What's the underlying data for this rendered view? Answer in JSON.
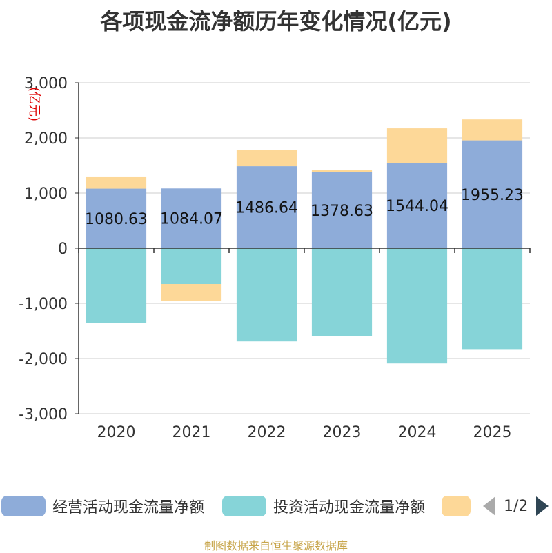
{
  "title": "各项现金流净额历年变化情况(亿元)",
  "unit_label": "(亿元)",
  "source": "制图数据来自恒生聚源数据库",
  "pager": {
    "text": "1/2"
  },
  "legend": [
    {
      "label": "经营活动现金流量净额",
      "color": "#8eacd9"
    },
    {
      "label": "投资活动现金流量净额",
      "color": "#86d4d8"
    },
    {
      "label": "",
      "color": "#fdd898"
    }
  ],
  "chart_data": {
    "type": "bar",
    "stacked": true,
    "title": "各项现金流净额历年变化情况(亿元)",
    "ylabel": "(亿元)",
    "ylim": [
      -3000,
      3000
    ],
    "yticks": [
      3000,
      2000,
      1000,
      0,
      -1000,
      -2000,
      -3000
    ],
    "ytick_labels": [
      "3,000",
      "2,000",
      "1,000",
      "0",
      "-1,000",
      "-2,000",
      "-3,000"
    ],
    "categories": [
      "2020",
      "2021",
      "2022",
      "2023",
      "2024",
      "2025"
    ],
    "series": [
      {
        "name": "经营活动现金流量净额",
        "color": "#8eacd9",
        "values": [
          1080.63,
          1084.07,
          1486.64,
          1378.63,
          1544.04,
          1955.23
        ],
        "labels": [
          "1080.63",
          "1084.07",
          "1486.64",
          "1378.63",
          "1544.04",
          "1955.23"
        ]
      },
      {
        "name": "投资活动现金流量净额",
        "color": "#86d4d8",
        "values": [
          -1350,
          -650,
          -1690,
          -1600,
          -2090,
          -1830
        ]
      },
      {
        "name": "",
        "color": "#fdd898",
        "values": [
          220,
          -310,
          300,
          40,
          630,
          380
        ]
      }
    ]
  }
}
